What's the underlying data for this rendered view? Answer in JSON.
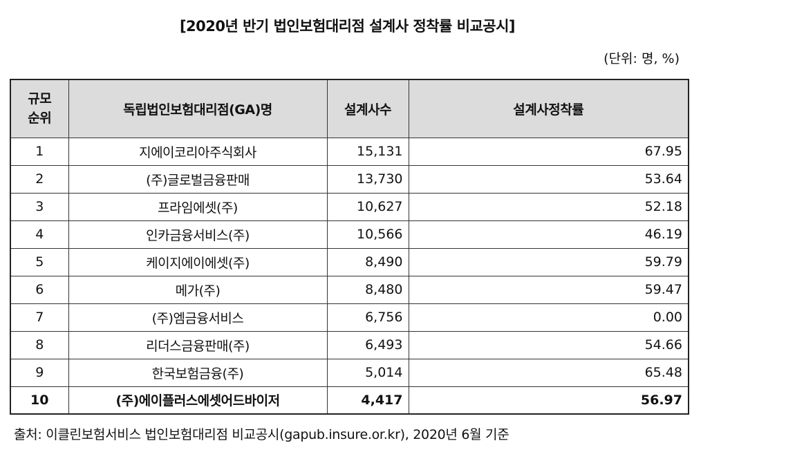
{
  "title": "[2020년 반기 법인보험대리점 설계사 정착률 비교공시]",
  "unit": "(단위: 명, %)",
  "table": {
    "headers": {
      "rank_line1": "규모",
      "rank_line2": "순위",
      "name": "독립법인보험대리점(GA)명",
      "agents": "설계사수",
      "retention": "설계사정착률"
    },
    "rows": [
      {
        "rank": "1",
        "name": "지에이코리아주식회사",
        "agents": "15,131",
        "retention": "67.95"
      },
      {
        "rank": "2",
        "name": "(주)글로벌금융판매",
        "agents": "13,730",
        "retention": "53.64"
      },
      {
        "rank": "3",
        "name": "프라임에셋(주)",
        "agents": "10,627",
        "retention": "52.18"
      },
      {
        "rank": "4",
        "name": "인카금융서비스(주)",
        "agents": "10,566",
        "retention": "46.19"
      },
      {
        "rank": "5",
        "name": "케이지에이에셋(주)",
        "agents": "8,490",
        "retention": "59.79"
      },
      {
        "rank": "6",
        "name": "메가(주)",
        "agents": "8,480",
        "retention": "59.47"
      },
      {
        "rank": "7",
        "name": "(주)엠금융서비스",
        "agents": "6,756",
        "retention": "0.00"
      },
      {
        "rank": "8",
        "name": "리더스금융판매(주)",
        "agents": "6,493",
        "retention": "54.66"
      },
      {
        "rank": "9",
        "name": "한국보험금융(주)",
        "agents": "5,014",
        "retention": "65.48"
      },
      {
        "rank": "10",
        "name": "(주)에이플러스에셋어드바이저",
        "agents": "4,417",
        "retention": "56.97"
      }
    ]
  },
  "source": "출처: 이클린보험서비스 법인보험대리점 비교공시(gapub.insure.or.kr), 2020년 6월 기준"
}
